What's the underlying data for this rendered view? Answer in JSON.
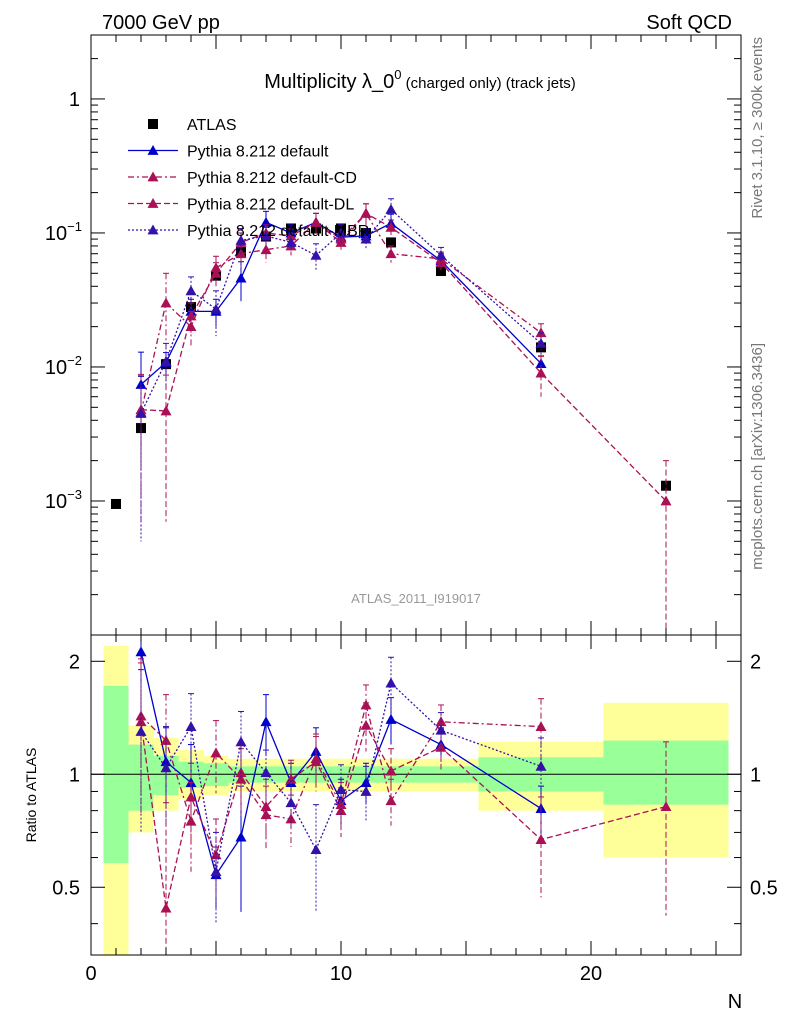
{
  "header": {
    "left": "7000 GeV pp",
    "right": "Soft QCD"
  },
  "side_text": {
    "rivet": "Rivet 3.1.10, ≥ 300k events",
    "mcplots": "mcplots.cern.ch [arXiv:1306.3436]"
  },
  "analysis_label": "ATLAS_2011_I919017",
  "chart_data": [
    {
      "panel": "main",
      "type": "scatter",
      "title": "Multiplicity λ_0",
      "title_sup": "0",
      "title_suffix": " (charged only) (track jets)",
      "xlabel": "N",
      "ylabel": "",
      "yscale": "log",
      "xlim": [
        0,
        26
      ],
      "ylim": [
        0.0001,
        3
      ],
      "y_tick_labels": [
        {
          "value": 0.001,
          "base": "10",
          "exp": "−3"
        },
        {
          "value": 0.01,
          "base": "10",
          "exp": "−2"
        },
        {
          "value": 0.1,
          "base": "10",
          "exp": "−1"
        },
        {
          "value": 1,
          "base": "1",
          "exp": ""
        }
      ],
      "series": [
        {
          "name": "ATLAS",
          "color": "#000000",
          "style": "marker",
          "marker": "square",
          "x": [
            1,
            2,
            3,
            4,
            5,
            6,
            7,
            8,
            9,
            10,
            11,
            12,
            14,
            18,
            23
          ],
          "y": [
            0.00095,
            0.0035,
            0.0105,
            0.028,
            0.048,
            0.072,
            0.094,
            0.108,
            0.108,
            0.108,
            0.1,
            0.085,
            0.052,
            0.014,
            0.0013
          ]
        },
        {
          "name": "Pythia 8.212 default",
          "color": "#0000cc",
          "style": "solid",
          "marker": "triangle",
          "x": [
            2,
            3,
            4,
            5,
            6,
            7,
            8,
            9,
            10,
            11,
            12,
            14,
            18
          ],
          "y": [
            0.0074,
            0.0108,
            0.026,
            0.026,
            0.046,
            0.12,
            0.1,
            0.12,
            0.093,
            0.095,
            0.118,
            0.062,
            0.0106
          ],
          "err": [
            0.0055,
            0.002,
            0.006,
            0.006,
            0.015,
            0.025,
            0.015,
            0.02,
            0.012,
            0.012,
            0.02,
            0.008,
            0.0015
          ]
        },
        {
          "name": "Pythia 8.212 default-CD",
          "color": "#aa1155",
          "style": "dashdot",
          "marker": "triangle",
          "x": [
            2,
            3,
            4,
            5,
            6,
            7,
            8,
            9,
            10,
            11,
            12,
            14,
            18
          ],
          "y": [
            0.0046,
            0.03,
            0.02,
            0.055,
            0.07,
            0.075,
            0.08,
            0.12,
            0.09,
            0.14,
            0.07,
            0.064,
            0.018
          ],
          "err": [
            0.004,
            0.02,
            0.006,
            0.012,
            0.015,
            0.015,
            0.012,
            0.02,
            0.012,
            0.025,
            0.01,
            0.008,
            0.003
          ]
        },
        {
          "name": "Pythia 8.212 default-DL",
          "color": "#aa1155",
          "style": "dashed",
          "marker": "triangle",
          "x": [
            2,
            3,
            4,
            5,
            6,
            7,
            8,
            9,
            10,
            11,
            12,
            14,
            18,
            23
          ],
          "y": [
            0.0048,
            0.0047,
            0.024,
            0.05,
            0.085,
            0.1,
            0.095,
            0.12,
            0.085,
            0.14,
            0.11,
            0.06,
            0.009,
            0.001
          ],
          "err": [
            0.004,
            0.004,
            0.006,
            0.01,
            0.015,
            0.015,
            0.012,
            0.02,
            0.012,
            0.025,
            0.015,
            0.008,
            0.003,
            0.001
          ]
        },
        {
          "name": "Pythia 8.212 default-MBR",
          "color": "#3311aa",
          "style": "dotted",
          "marker": "triangle",
          "x": [
            2,
            3,
            4,
            5,
            6,
            7,
            8,
            9,
            10,
            11,
            12,
            14,
            18
          ],
          "y": [
            0.0045,
            0.011,
            0.037,
            0.027,
            0.088,
            0.095,
            0.085,
            0.068,
            0.1,
            0.09,
            0.15,
            0.068,
            0.015
          ],
          "err": [
            0.004,
            0.004,
            0.01,
            0.01,
            0.02,
            0.015,
            0.012,
            0.015,
            0.015,
            0.015,
            0.03,
            0.01,
            0.003
          ]
        }
      ]
    },
    {
      "panel": "ratio",
      "type": "line",
      "xlabel": "N",
      "ylabel": "Ratio to ATLAS",
      "yscale": "log",
      "xlim": [
        0,
        26
      ],
      "ylim": [
        0.33,
        2.35
      ],
      "x_tick_labels": [
        0,
        10,
        20
      ],
      "y_tick_labels": [
        0.5,
        1,
        2
      ],
      "bands": [
        {
          "x0": 0.5,
          "x1": 1.5,
          "y_lo": 0.0,
          "y_hi": 2.2,
          "g_lo": 0.58,
          "g_hi": 1.72
        },
        {
          "x0": 1.5,
          "x1": 2.5,
          "y_lo": 0.7,
          "y_hi": 1.35,
          "g_lo": 0.8,
          "g_hi": 1.2
        },
        {
          "x0": 2.5,
          "x1": 3.5,
          "y_lo": 0.8,
          "y_hi": 1.25,
          "g_lo": 0.88,
          "g_hi": 1.12
        },
        {
          "x0": 3.5,
          "x1": 4.5,
          "y_lo": 0.86,
          "y_hi": 1.16,
          "g_lo": 0.92,
          "g_hi": 1.08
        },
        {
          "x0": 4.5,
          "x1": 5.5,
          "y_lo": 0.88,
          "y_hi": 1.12,
          "g_lo": 0.93,
          "g_hi": 1.07
        },
        {
          "x0": 5.5,
          "x1": 6.5,
          "y_lo": 0.9,
          "y_hi": 1.1,
          "g_lo": 0.95,
          "g_hi": 1.05
        },
        {
          "x0": 6.5,
          "x1": 7.5,
          "y_lo": 0.9,
          "y_hi": 1.1,
          "g_lo": 0.95,
          "g_hi": 1.05
        },
        {
          "x0": 7.5,
          "x1": 8.5,
          "y_lo": 0.9,
          "y_hi": 1.1,
          "g_lo": 0.95,
          "g_hi": 1.05
        },
        {
          "x0": 8.5,
          "x1": 9.5,
          "y_lo": 0.9,
          "y_hi": 1.1,
          "g_lo": 0.95,
          "g_hi": 1.05
        },
        {
          "x0": 9.5,
          "x1": 10.5,
          "y_lo": 0.9,
          "y_hi": 1.1,
          "g_lo": 0.95,
          "g_hi": 1.05
        },
        {
          "x0": 10.5,
          "x1": 11.5,
          "y_lo": 0.9,
          "y_hi": 1.1,
          "g_lo": 0.95,
          "g_hi": 1.05
        },
        {
          "x0": 11.5,
          "x1": 12.5,
          "y_lo": 0.9,
          "y_hi": 1.1,
          "g_lo": 0.95,
          "g_hi": 1.05
        },
        {
          "x0": 12.5,
          "x1": 15.5,
          "y_lo": 0.9,
          "y_hi": 1.1,
          "g_lo": 0.95,
          "g_hi": 1.05
        },
        {
          "x0": 15.5,
          "x1": 20.5,
          "y_lo": 0.8,
          "y_hi": 1.22,
          "g_lo": 0.9,
          "g_hi": 1.11
        },
        {
          "x0": 20.5,
          "x1": 25.5,
          "y_lo": 0.6,
          "y_hi": 1.55,
          "g_lo": 0.83,
          "g_hi": 1.23
        }
      ],
      "series": [
        {
          "name": "Pythia 8.212 default",
          "color": "#0000cc",
          "style": "solid",
          "x": [
            2,
            3,
            4,
            5,
            6,
            7,
            8,
            9,
            10,
            11,
            12,
            14,
            18
          ],
          "y": [
            2.12,
            1.08,
            0.95,
            0.54,
            0.68,
            1.38,
            0.95,
            1.15,
            0.85,
            0.95,
            1.4,
            1.2,
            0.81
          ],
          "err": [
            0.8,
            0.25,
            0.25,
            0.1,
            0.25,
            0.25,
            0.12,
            0.18,
            0.12,
            0.12,
            0.2,
            0.12,
            0.12
          ]
        },
        {
          "name": "Pythia 8.212 default-CD",
          "color": "#aa1155",
          "style": "dashdot",
          "x": [
            2,
            3,
            4,
            5,
            6,
            7,
            8,
            9,
            10,
            11,
            12,
            14,
            18
          ],
          "y": [
            1.43,
            1.23,
            0.75,
            1.14,
            0.97,
            0.78,
            0.76,
            1.1,
            0.83,
            1.53,
            0.85,
            1.38,
            1.34
          ],
          "err": [
            0.6,
            0.4,
            0.2,
            0.25,
            0.2,
            0.15,
            0.12,
            0.18,
            0.12,
            0.2,
            0.12,
            0.15,
            0.25
          ]
        },
        {
          "name": "Pythia 8.212 default-DL",
          "color": "#aa1155",
          "style": "dashed",
          "x": [
            2,
            3,
            4,
            5,
            6,
            7,
            8,
            9,
            10,
            11,
            12,
            14,
            18,
            23
          ],
          "y": [
            1.38,
            0.44,
            0.87,
            0.61,
            1.01,
            0.82,
            0.97,
            1.08,
            0.8,
            1.35,
            1.02,
            1.18,
            0.67,
            0.82
          ],
          "err": [
            0.6,
            0.4,
            0.2,
            0.15,
            0.2,
            0.15,
            0.12,
            0.18,
            0.12,
            0.2,
            0.15,
            0.15,
            0.2,
            0.4
          ]
        },
        {
          "name": "Pythia 8.212 default-MBR",
          "color": "#3311aa",
          "style": "dotted",
          "x": [
            2,
            3,
            4,
            5,
            6,
            7,
            8,
            9,
            10,
            11,
            12,
            14,
            18
          ],
          "y": [
            1.3,
            1.04,
            1.34,
            0.55,
            1.22,
            1.01,
            0.84,
            0.63,
            0.91,
            0.9,
            1.75,
            1.31,
            1.05
          ],
          "err": [
            0.6,
            0.3,
            0.3,
            0.15,
            0.25,
            0.15,
            0.12,
            0.2,
            0.15,
            0.15,
            0.3,
            0.15,
            0.2
          ]
        }
      ]
    }
  ]
}
